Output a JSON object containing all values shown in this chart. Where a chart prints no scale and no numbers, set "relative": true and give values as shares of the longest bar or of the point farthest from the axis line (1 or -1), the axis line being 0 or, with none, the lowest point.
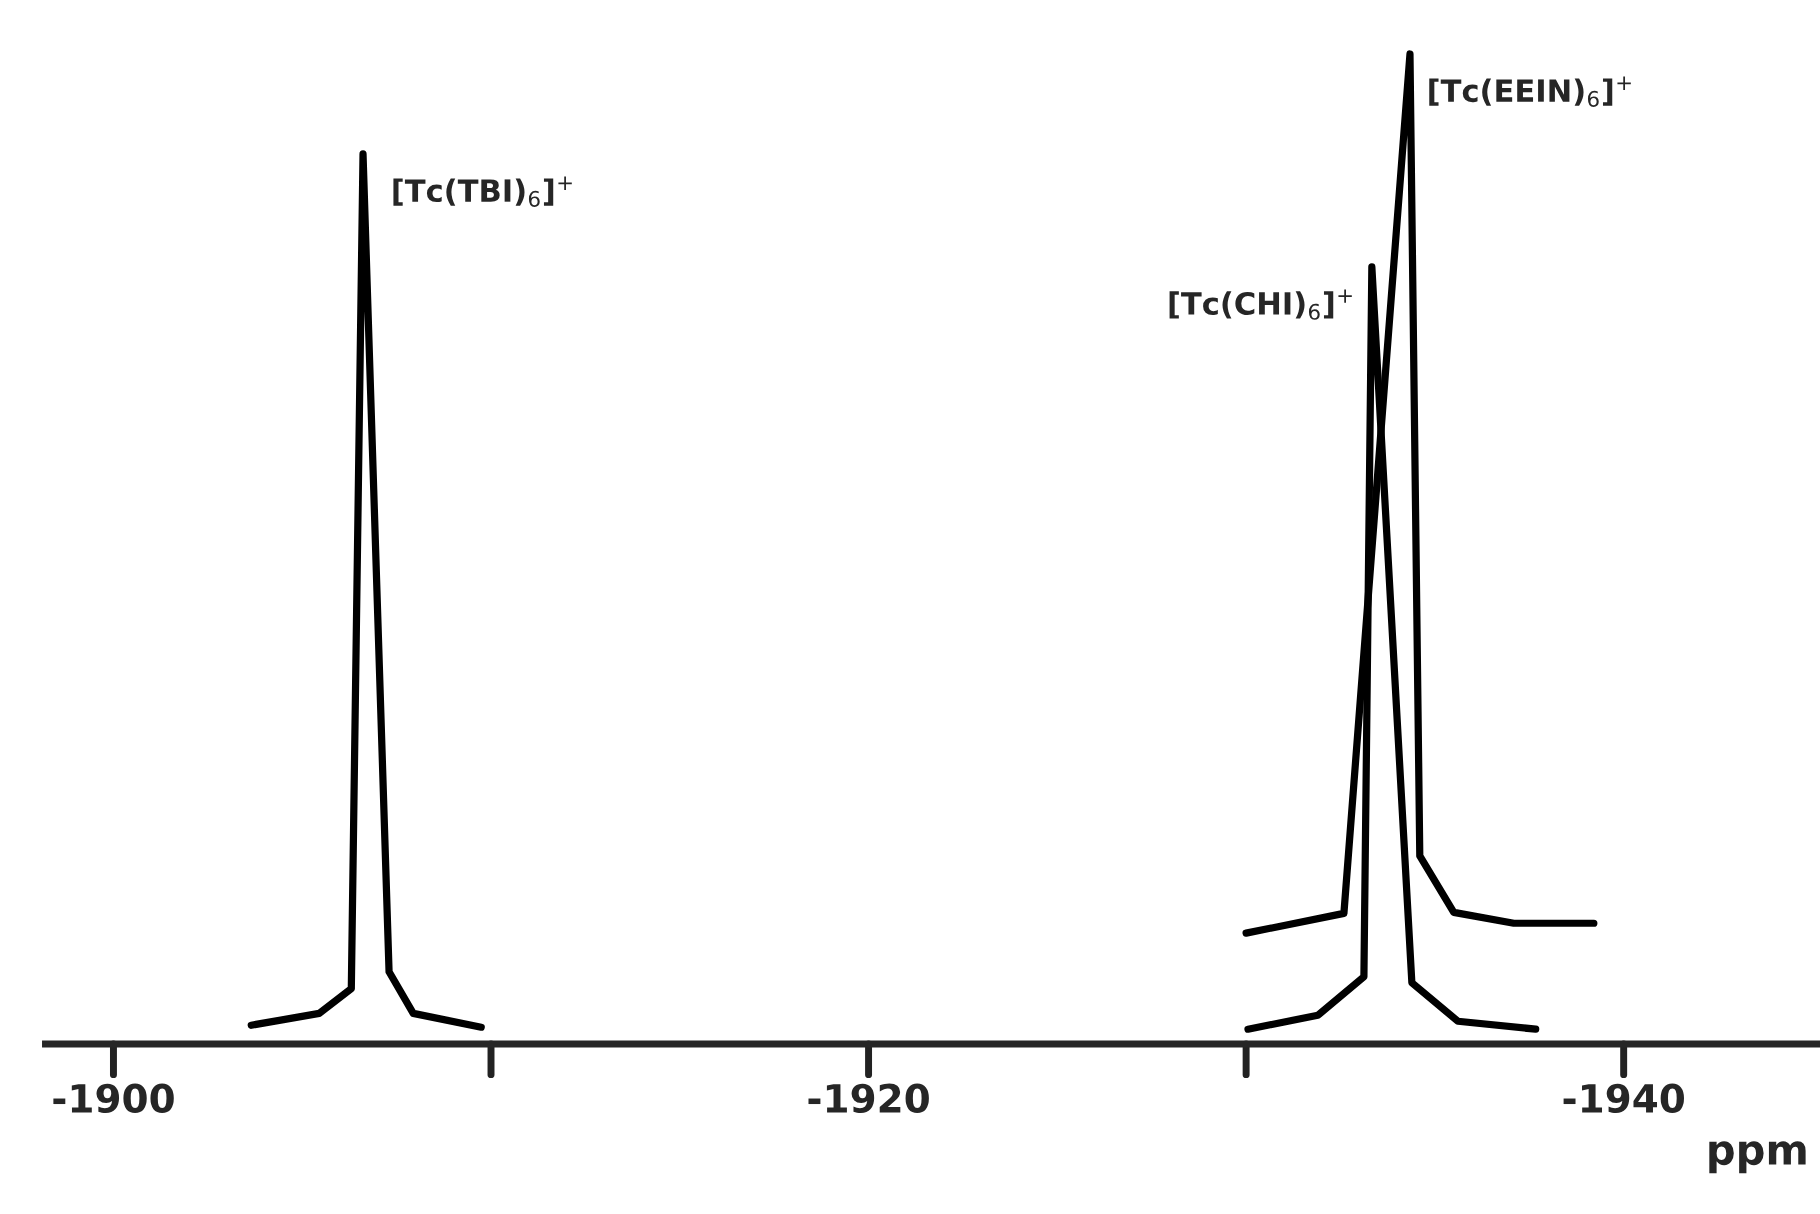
{
  "chart_data": {
    "type": "line",
    "relative": true,
    "xlabel": "ppm",
    "xlim": [
      -1898.2,
      -1945.2
    ],
    "xticks": [
      -1900,
      {
        "value": -1910,
        "label": null
      },
      -1920,
      {
        "value": -1930,
        "label": null
      },
      -1940
    ],
    "marker": "none",
    "line_style": "solid",
    "grid": false,
    "series": [
      {
        "color": "#000000",
        "x": [
          -1903.65,
          -1905.45,
          -1906.3,
          -1906.61,
          -1907.3,
          -1907.94,
          -1909.74
        ],
        "values": [
          0.019,
          0.031,
          0.056,
          0.899,
          0.073,
          0.031,
          0.017
        ]
      },
      {
        "color": "#000000",
        "x": [
          -1930.05,
          -1931.9,
          -1933.12,
          -1933.33,
          -1934.39,
          -1935.61,
          -1937.67
        ],
        "values": [
          0.015,
          0.029,
          0.068,
          0.785,
          0.062,
          0.023,
          0.015
        ]
      },
      {
        "color": "#000000",
        "x": [
          -1930.0,
          -1932.59,
          -1934.34,
          -1934.6,
          -1935.5,
          -1937.09,
          -1939.21
        ],
        "values": [
          0.112,
          0.132,
          1.0,
          0.19,
          0.133,
          0.122,
          0.122
        ]
      }
    ],
    "annotations": [
      {
        "text": "[Tc(TBI)$_{6}$]$^{+}$",
        "x": -1906.61,
        "y": 0.899
      },
      {
        "text": "[Tc(CHI)$_{6}$]$^{+}$",
        "x": -1933.33,
        "y": 0.785
      },
      {
        "text": "[Tc(EEIN)$_{6}$]$^{+}$",
        "x": -1934.34,
        "y": 1.0
      }
    ]
  }
}
